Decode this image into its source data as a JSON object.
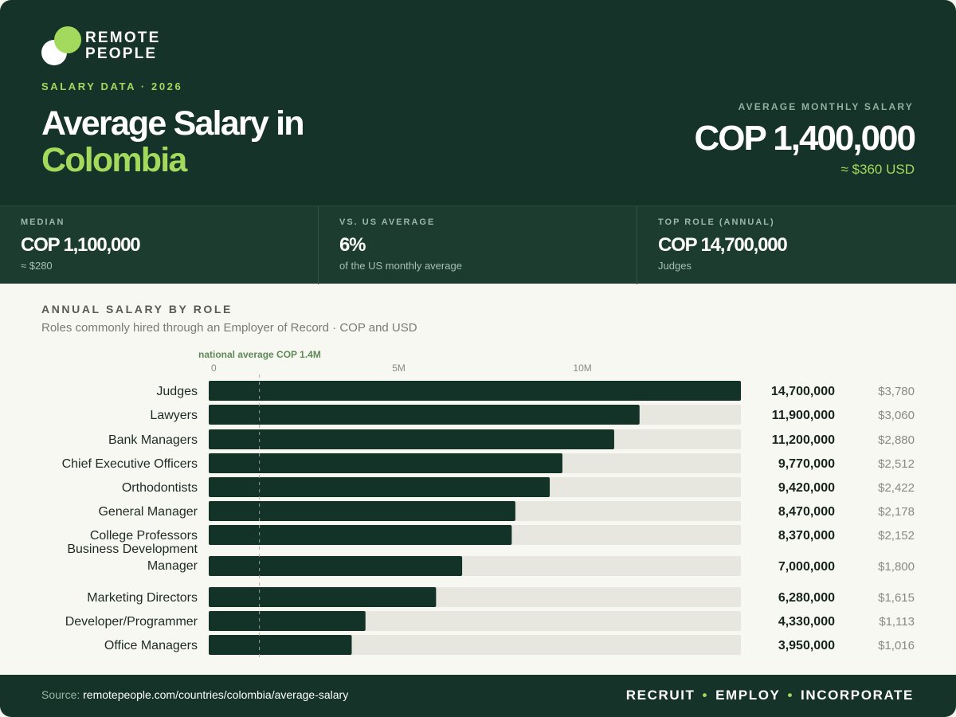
{
  "brand": {
    "line1": "REMOTE",
    "line2": "PEOPLE"
  },
  "header": {
    "eyebrow": "SALARY DATA · 2026",
    "title_line1": "Average Salary in",
    "title_line2": "Colombia",
    "avg_label": "AVERAGE MONTHLY SALARY",
    "avg_value": "COP 1,400,000",
    "avg_usd": "≈ $360 USD"
  },
  "stats": [
    {
      "label": "MEDIAN",
      "value": "COP 1,100,000",
      "sub": "≈ $280"
    },
    {
      "label": "VS. US AVERAGE",
      "value": "6%",
      "sub": "of the US monthly average"
    },
    {
      "label": "TOP ROLE (ANNUAL)",
      "value": "COP 14,700,000",
      "sub": "Judges"
    }
  ],
  "section": {
    "title": "ANNUAL SALARY BY ROLE",
    "subtitle": "Roles commonly hired through an Employer of Record · COP and USD"
  },
  "chart_data": {
    "type": "bar",
    "orientation": "horizontal",
    "xlim": [
      0,
      14700000
    ],
    "ticks": [
      {
        "value": 0,
        "label": "0"
      },
      {
        "value": 5000000,
        "label": "5M"
      },
      {
        "value": 10000000,
        "label": "10M"
      }
    ],
    "reference_line": {
      "value": 1400000,
      "label": "national average COP 1.4M"
    },
    "rows": [
      {
        "role": "Judges",
        "cop": 14700000,
        "cop_label": "14,700,000",
        "usd_label": "$3,780"
      },
      {
        "role": "Lawyers",
        "cop": 11900000,
        "cop_label": "11,900,000",
        "usd_label": "$3,060"
      },
      {
        "role": "Bank Managers",
        "cop": 11200000,
        "cop_label": "11,200,000",
        "usd_label": "$2,880"
      },
      {
        "role": "Chief Executive Officers",
        "cop": 9770000,
        "cop_label": "9,770,000",
        "usd_label": "$2,512"
      },
      {
        "role": "Orthodontists",
        "cop": 9420000,
        "cop_label": "9,420,000",
        "usd_label": "$2,422"
      },
      {
        "role": "General Manager",
        "cop": 8470000,
        "cop_label": "8,470,000",
        "usd_label": "$2,178"
      },
      {
        "role": "College Professors",
        "cop": 8370000,
        "cop_label": "8,370,000",
        "usd_label": "$2,152"
      },
      {
        "role": "Business Development Manager",
        "role_lines": [
          "Business Development",
          "Manager"
        ],
        "cop": 7000000,
        "cop_label": "7,000,000",
        "usd_label": "$1,800"
      },
      {
        "role": "Marketing Directors",
        "cop": 6280000,
        "cop_label": "6,280,000",
        "usd_label": "$1,615"
      },
      {
        "role": "Developer/Programmer",
        "cop": 4330000,
        "cop_label": "4,330,000",
        "usd_label": "$1,113"
      },
      {
        "role": "Office Managers",
        "cop": 3950000,
        "cop_label": "3,950,000",
        "usd_label": "$1,016"
      }
    ],
    "colors": {
      "bar": "#143328",
      "track": "#e7e7df",
      "reference": "#a6a69c",
      "reference_label": "#5d8a55"
    }
  },
  "footer": {
    "source_prefix": "Source: ",
    "source_url": "remotepeople.com/countries/colombia/average-salary",
    "tagline": [
      "RECRUIT",
      "EMPLOY",
      "INCORPORATE"
    ]
  }
}
